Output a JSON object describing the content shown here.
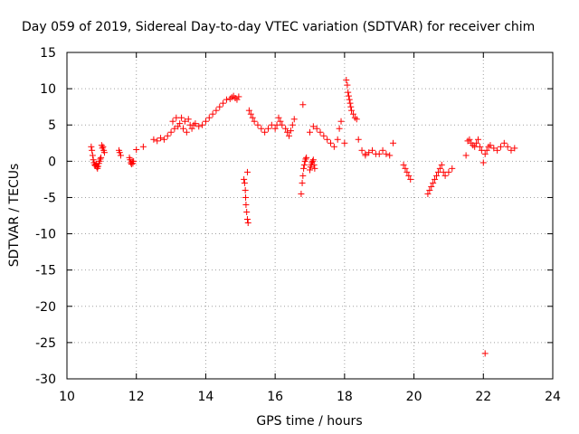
{
  "chart_data": {
    "type": "scatter",
    "title": "Day 059 of 2019, Sidereal Day-to-day VTEC variation (SDTVAR) for receiver chim",
    "xlabel": "GPS time / hours",
    "ylabel": "SDTVAR / TECUs",
    "xlim": [
      10,
      24
    ],
    "ylim": [
      -30,
      15
    ],
    "xticks": [
      "10",
      "12",
      "14",
      "16",
      "18",
      "20",
      "22",
      "24"
    ],
    "yticks": [
      "15",
      "10",
      "5",
      "0",
      "-5",
      "-10",
      "-15",
      "-20",
      "-25",
      "-30"
    ],
    "grid": true,
    "marker": "+",
    "series": [
      {
        "name": "SDTVAR",
        "color": "#ff0000",
        "x": [
          10.7,
          10.72,
          10.74,
          10.76,
          10.78,
          10.8,
          10.82,
          10.84,
          10.86,
          10.88,
          10.9,
          10.92,
          10.94,
          10.96,
          10.98,
          11.0,
          11.02,
          11.04,
          11.06,
          11.08,
          11.5,
          11.52,
          11.55,
          11.8,
          11.82,
          11.84,
          11.86,
          11.88,
          11.9,
          11.92,
          12.0,
          12.2,
          12.5,
          12.6,
          12.7,
          12.8,
          12.9,
          13.0,
          13.05,
          13.1,
          13.15,
          13.2,
          13.25,
          13.3,
          13.35,
          13.4,
          13.45,
          13.5,
          13.55,
          13.6,
          13.65,
          13.7,
          13.8,
          13.9,
          14.0,
          14.1,
          14.2,
          14.3,
          14.4,
          14.5,
          14.6,
          14.7,
          14.75,
          14.8,
          14.85,
          14.9,
          14.95,
          15.1,
          15.12,
          15.14,
          15.15,
          15.16,
          15.18,
          15.2,
          15.22,
          15.2,
          15.25,
          15.3,
          15.35,
          15.4,
          15.5,
          15.6,
          15.7,
          15.8,
          15.9,
          16.0,
          16.05,
          16.1,
          16.15,
          16.2,
          16.3,
          16.35,
          16.4,
          16.45,
          16.5,
          16.55,
          16.75,
          16.78,
          16.8,
          16.82,
          16.84,
          16.86,
          16.88,
          16.9,
          16.8,
          17.0,
          17.02,
          17.04,
          17.06,
          17.08,
          17.1,
          17.12,
          17.14,
          17.0,
          17.1,
          17.2,
          17.3,
          17.4,
          17.5,
          17.6,
          17.7,
          17.8,
          17.85,
          17.9,
          18.0,
          18.05,
          18.08,
          18.1,
          18.12,
          18.14,
          18.16,
          18.18,
          18.2,
          18.25,
          18.3,
          18.35,
          18.4,
          18.5,
          18.6,
          18.6,
          18.7,
          18.8,
          18.9,
          19.0,
          19.1,
          19.2,
          19.3,
          19.4,
          19.7,
          19.75,
          19.8,
          19.85,
          19.9,
          20.4,
          20.45,
          20.5,
          20.55,
          20.6,
          20.65,
          20.7,
          20.75,
          20.8,
          20.85,
          20.9,
          21.0,
          21.1,
          21.5,
          21.55,
          21.6,
          21.65,
          21.7,
          21.75,
          21.8,
          21.85,
          21.9,
          21.95,
          22.0,
          22.05,
          22.1,
          22.15,
          22.2,
          22.3,
          22.4,
          22.5,
          22.6,
          22.7,
          22.8,
          22.9,
          22.05
        ],
        "y": [
          2.0,
          1.5,
          0.8,
          0.2,
          -0.2,
          -0.5,
          -0.6,
          -0.4,
          -0.8,
          -1.0,
          -0.7,
          -0.3,
          0.0,
          0.3,
          0.5,
          2.2,
          1.8,
          2.0,
          1.5,
          1.2,
          1.5,
          1.2,
          0.8,
          0.5,
          0.2,
          -0.2,
          -0.4,
          0.0,
          -0.3,
          0.0,
          1.6,
          2.0,
          3.0,
          2.8,
          3.2,
          3.0,
          3.5,
          4.0,
          5.5,
          4.5,
          6.0,
          4.8,
          5.2,
          6.0,
          4.5,
          5.5,
          4.0,
          5.8,
          5.0,
          4.5,
          5.0,
          5.2,
          4.8,
          5.0,
          5.5,
          6.0,
          6.5,
          7.0,
          7.5,
          8.0,
          8.5,
          8.6,
          8.8,
          9.0,
          8.7,
          8.5,
          8.9,
          -2.5,
          -3.0,
          -4.0,
          -5.0,
          -6.0,
          -7.0,
          -8.0,
          -8.5,
          -1.5,
          7.0,
          6.5,
          6.0,
          5.5,
          5.0,
          4.5,
          4.0,
          4.5,
          5.0,
          4.5,
          5.0,
          6.0,
          5.5,
          5.0,
          4.5,
          4.0,
          3.5,
          4.2,
          5.0,
          5.8,
          -4.5,
          -3.0,
          -2.0,
          -1.0,
          -0.5,
          0.0,
          0.3,
          0.5,
          7.8,
          -1.2,
          -0.8,
          -0.5,
          -0.2,
          0.0,
          0.2,
          -0.5,
          -1.0,
          4.0,
          4.8,
          4.5,
          4.0,
          3.5,
          3.0,
          2.5,
          2.0,
          3.0,
          4.5,
          5.5,
          2.5,
          11.2,
          10.5,
          9.5,
          9.0,
          8.5,
          8.0,
          7.5,
          7.0,
          6.5,
          6.0,
          5.8,
          3.0,
          1.5,
          1.0,
          0.8,
          1.2,
          1.5,
          1.0,
          1.0,
          1.5,
          1.0,
          0.8,
          2.5,
          -0.5,
          -1.0,
          -1.5,
          -2.0,
          -2.5,
          -4.5,
          -4.0,
          -3.5,
          -3.0,
          -2.5,
          -2.0,
          -1.5,
          -1.0,
          -0.5,
          -1.5,
          -2.0,
          -1.5,
          -1.0,
          0.8,
          2.8,
          3.0,
          2.5,
          2.2,
          2.0,
          2.5,
          3.0,
          2.0,
          1.5,
          -0.2,
          1.0,
          1.5,
          2.0,
          2.2,
          1.8,
          1.5,
          2.0,
          2.5,
          2.0,
          1.5,
          1.8,
          -26.5
        ]
      }
    ]
  }
}
